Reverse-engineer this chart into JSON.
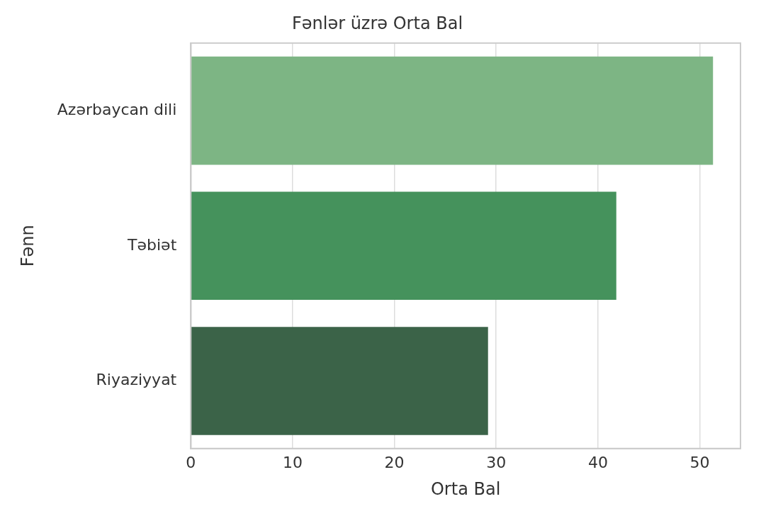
{
  "chart_data": {
    "type": "bar",
    "orientation": "horizontal",
    "title": "Fənlər üzrə Orta Bal",
    "xlabel": "Orta Bal",
    "ylabel": "Fənn",
    "categories": [
      "Azərbaycan dili",
      "Təbiət",
      "Riyaziyyat"
    ],
    "values": [
      51.3,
      41.8,
      29.2
    ],
    "colors": [
      "#7db584",
      "#45925c",
      "#3b6348"
    ],
    "xlim": [
      0,
      54
    ],
    "xticks": [
      0,
      10,
      20,
      30,
      40,
      50
    ],
    "grid": "x",
    "legend": false
  }
}
